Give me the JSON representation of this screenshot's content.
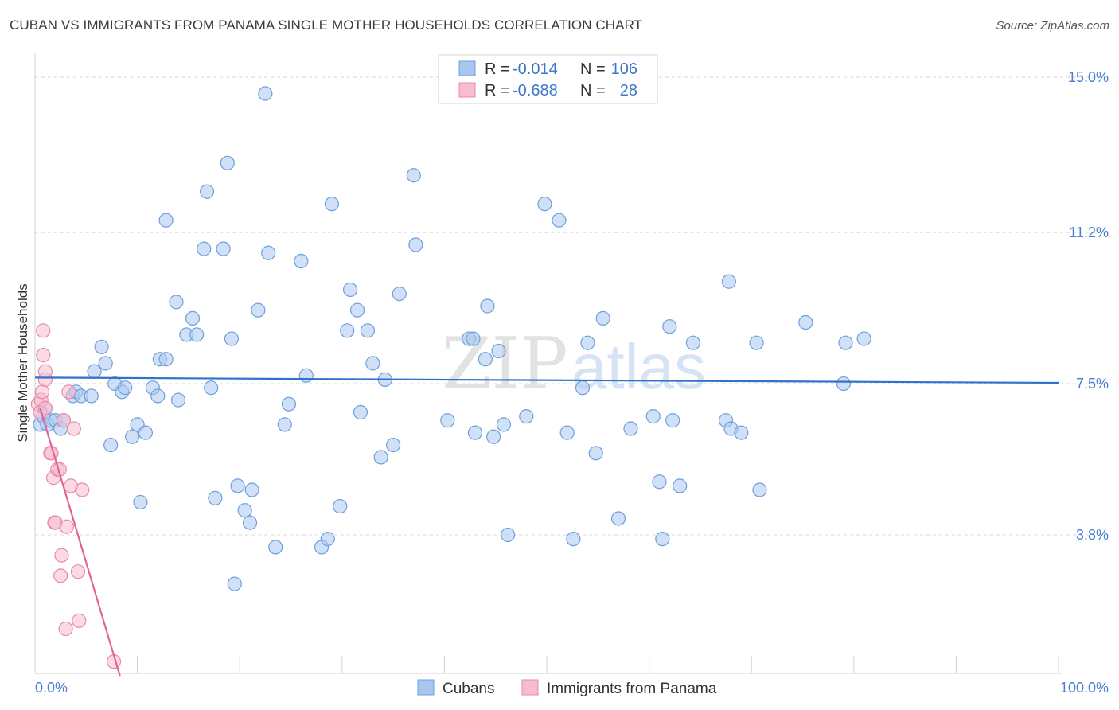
{
  "title": "CUBAN VS IMMIGRANTS FROM PANAMA SINGLE MOTHER HOUSEHOLDS CORRELATION CHART",
  "source": "Source: ZipAtlas.com",
  "watermark": {
    "zip": "ZIP",
    "atlas": "atlas"
  },
  "colors": {
    "blue_fill": "#a9c6ef",
    "blue_stroke": "#6f9fdc",
    "blue_line": "#2f72cc",
    "pink_fill": "#f7bcd0",
    "pink_stroke": "#e88aab",
    "pink_line": "#e0649a",
    "axis_text": "#4a7fd0",
    "grid": "#d8d8d8"
  },
  "legend": {
    "rows": [
      {
        "r_label": "R =",
        "r_value": "-0.014",
        "n_label": "N =",
        "n_value": "106"
      },
      {
        "r_label": "R =",
        "r_value": "-0.688",
        "n_label": "N =",
        "n_value": "28"
      }
    ]
  },
  "bottom_legend": [
    "Cubans",
    "Immigrants from Panama"
  ],
  "chart_data": {
    "type": "scatter",
    "title": "CUBAN VS IMMIGRANTS FROM PANAMA SINGLE MOTHER HOUSEHOLDS CORRELATION CHART",
    "xlabel": "",
    "ylabel": "Single Mother Households",
    "xlim": [
      0,
      100
    ],
    "ylim": [
      0.3,
      15.5
    ],
    "x_tick_labels": [
      "0.0%",
      "100.0%"
    ],
    "y_ticks": [
      3.8,
      7.5,
      11.2,
      15.0
    ],
    "y_tick_labels": [
      "3.8%",
      "7.5%",
      "11.2%",
      "15.0%"
    ],
    "grid": "horizontal dashed",
    "legend_position": "top-center",
    "series": [
      {
        "name": "Cubans",
        "color": "#a9c6ef",
        "r": -0.014,
        "n": 106,
        "trend": {
          "x": [
            0,
            100
          ],
          "y": [
            7.65,
            7.52
          ]
        },
        "points": [
          [
            0.5,
            6.5
          ],
          [
            0.8,
            6.7
          ],
          [
            1.0,
            6.9
          ],
          [
            1.2,
            6.5
          ],
          [
            1.5,
            6.6
          ],
          [
            2.0,
            6.6
          ],
          [
            2.5,
            6.4
          ],
          [
            2.8,
            6.6
          ],
          [
            3.7,
            7.2
          ],
          [
            4.0,
            7.3
          ],
          [
            4.5,
            7.2
          ],
          [
            5.5,
            7.2
          ],
          [
            5.8,
            7.8
          ],
          [
            6.5,
            8.4
          ],
          [
            6.9,
            8.0
          ],
          [
            7.4,
            6.0
          ],
          [
            7.8,
            7.5
          ],
          [
            8.5,
            7.3
          ],
          [
            8.8,
            7.4
          ],
          [
            9.5,
            6.2
          ],
          [
            10.0,
            6.5
          ],
          [
            10.3,
            4.6
          ],
          [
            10.8,
            6.3
          ],
          [
            11.5,
            7.4
          ],
          [
            12.0,
            7.2
          ],
          [
            12.2,
            8.1
          ],
          [
            12.8,
            8.1
          ],
          [
            12.8,
            11.5
          ],
          [
            13.8,
            9.5
          ],
          [
            14.0,
            7.1
          ],
          [
            14.8,
            8.7
          ],
          [
            15.4,
            9.1
          ],
          [
            15.8,
            8.7
          ],
          [
            16.5,
            10.8
          ],
          [
            16.8,
            12.2
          ],
          [
            17.2,
            7.4
          ],
          [
            17.6,
            4.7
          ],
          [
            18.4,
            10.8
          ],
          [
            18.8,
            12.9
          ],
          [
            19.2,
            8.6
          ],
          [
            19.5,
            2.6
          ],
          [
            19.8,
            5.0
          ],
          [
            20.5,
            4.4
          ],
          [
            21.0,
            4.1
          ],
          [
            21.2,
            4.9
          ],
          [
            21.8,
            9.3
          ],
          [
            22.5,
            14.6
          ],
          [
            22.8,
            10.7
          ],
          [
            23.5,
            3.5
          ],
          [
            24.8,
            7.0
          ],
          [
            24.4,
            6.5
          ],
          [
            26.0,
            10.5
          ],
          [
            26.5,
            7.7
          ],
          [
            28.0,
            3.5
          ],
          [
            28.6,
            3.7
          ],
          [
            29.0,
            11.9
          ],
          [
            29.8,
            4.5
          ],
          [
            30.5,
            8.8
          ],
          [
            30.8,
            9.8
          ],
          [
            31.5,
            9.3
          ],
          [
            31.8,
            6.8
          ],
          [
            32.5,
            8.8
          ],
          [
            33.0,
            8.0
          ],
          [
            33.8,
            5.7
          ],
          [
            34.2,
            7.6
          ],
          [
            35.0,
            6.0
          ],
          [
            35.6,
            9.7
          ],
          [
            37.0,
            12.6
          ],
          [
            37.2,
            10.9
          ],
          [
            40.3,
            6.6
          ],
          [
            42.4,
            8.6
          ],
          [
            42.8,
            8.6
          ],
          [
            43.0,
            6.3
          ],
          [
            44.0,
            8.1
          ],
          [
            44.2,
            9.4
          ],
          [
            44.8,
            6.2
          ],
          [
            45.3,
            8.3
          ],
          [
            45.8,
            6.5
          ],
          [
            46.2,
            3.8
          ],
          [
            48.0,
            6.7
          ],
          [
            49.8,
            11.9
          ],
          [
            51.2,
            11.5
          ],
          [
            52.0,
            6.3
          ],
          [
            52.6,
            3.7
          ],
          [
            53.5,
            7.4
          ],
          [
            54.0,
            8.5
          ],
          [
            54.8,
            5.8
          ],
          [
            55.5,
            9.1
          ],
          [
            57.0,
            4.2
          ],
          [
            58.2,
            6.4
          ],
          [
            60.4,
            6.7
          ],
          [
            61.0,
            5.1
          ],
          [
            61.3,
            3.7
          ],
          [
            62.0,
            8.9
          ],
          [
            62.3,
            6.6
          ],
          [
            63.0,
            5.0
          ],
          [
            64.3,
            8.5
          ],
          [
            67.5,
            6.6
          ],
          [
            67.8,
            10.0
          ],
          [
            68.0,
            6.4
          ],
          [
            69.0,
            6.3
          ],
          [
            70.5,
            8.5
          ],
          [
            70.8,
            4.9
          ],
          [
            75.3,
            9.0
          ],
          [
            79.0,
            7.5
          ],
          [
            79.2,
            8.5
          ],
          [
            81.0,
            8.6
          ]
        ]
      },
      {
        "name": "Immigrants from Panama",
        "color": "#f7bcd0",
        "r": -0.688,
        "n": 28,
        "trend": {
          "x": [
            0.5,
            8.3
          ],
          "y": [
            6.9,
            0.35
          ]
        },
        "points": [
          [
            0.3,
            7.0
          ],
          [
            0.5,
            6.8
          ],
          [
            0.6,
            7.1
          ],
          [
            0.7,
            7.3
          ],
          [
            0.8,
            8.8
          ],
          [
            0.8,
            8.2
          ],
          [
            1.0,
            7.6
          ],
          [
            1.0,
            7.8
          ],
          [
            1.0,
            6.9
          ],
          [
            1.5,
            5.8
          ],
          [
            1.6,
            5.8
          ],
          [
            1.8,
            5.2
          ],
          [
            1.9,
            4.1
          ],
          [
            2.0,
            4.1
          ],
          [
            2.2,
            5.4
          ],
          [
            2.4,
            5.4
          ],
          [
            2.5,
            2.8
          ],
          [
            2.6,
            3.3
          ],
          [
            2.8,
            6.6
          ],
          [
            3.0,
            1.5
          ],
          [
            3.1,
            4.0
          ],
          [
            3.3,
            7.3
          ],
          [
            3.5,
            5.0
          ],
          [
            3.8,
            6.4
          ],
          [
            4.2,
            2.9
          ],
          [
            4.3,
            1.7
          ],
          [
            4.6,
            4.9
          ],
          [
            7.7,
            0.7
          ]
        ]
      }
    ]
  }
}
